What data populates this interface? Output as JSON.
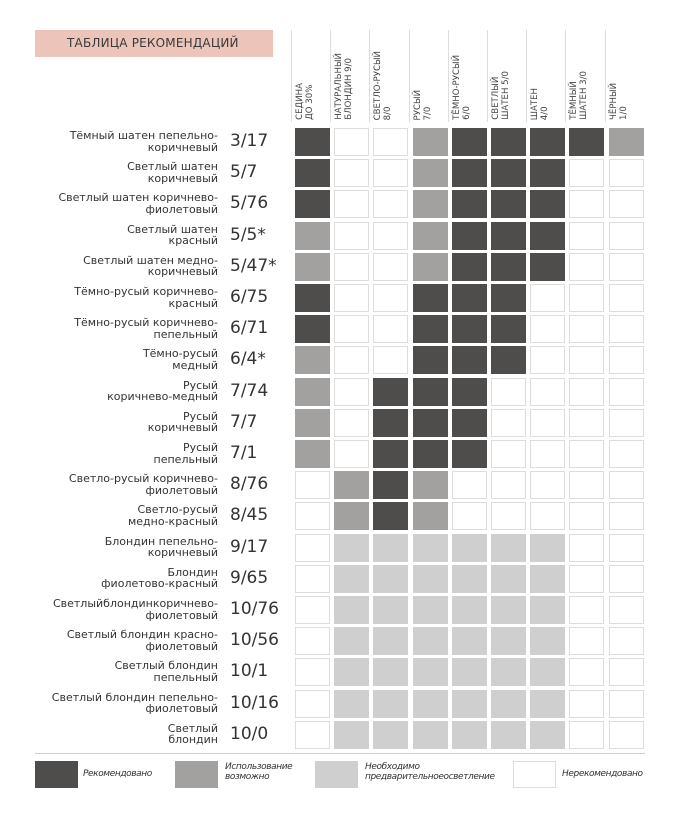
{
  "title": "ТАБЛИЦА РЕКОМЕНДАЦИЙ",
  "columns": [
    [
      "СЕДИНА",
      "ДО 30%"
    ],
    [
      "НАТУРАЛЬНЫЙ",
      "БЛОНДИН 9/0"
    ],
    [
      "СВЕТЛО-РУСЫЙ",
      "8/0"
    ],
    [
      "РУСЫЙ",
      "7/0"
    ],
    [
      "ТЁМНО-РУСЫЙ",
      "6/0"
    ],
    [
      "СВЕТЛЫЙ",
      "ШАТЕН 5/0"
    ],
    [
      "ШАТЕН",
      "4/0"
    ],
    [
      "ТЁМНЫЙ",
      "ШАТЕН 3/0"
    ],
    [
      "ЧЁРНЫЙ",
      "1/0"
    ]
  ],
  "rows": [
    {
      "label": [
        "Тёмный шатен пепельно-",
        "коричневый"
      ],
      "code": "3/17",
      "levels": [
        3,
        0,
        0,
        2,
        3,
        3,
        3,
        3,
        2
      ]
    },
    {
      "label": [
        "Светлый шатен",
        "коричневый"
      ],
      "code": "5/7",
      "levels": [
        3,
        0,
        0,
        2,
        3,
        3,
        3,
        0,
        0
      ]
    },
    {
      "label": [
        "Светлый шатен коричнево-",
        "фиолетовый"
      ],
      "code": "5/76",
      "levels": [
        3,
        0,
        0,
        2,
        3,
        3,
        3,
        0,
        0
      ]
    },
    {
      "label": [
        "Светлый шатен",
        "красный"
      ],
      "code": "5/5*",
      "levels": [
        2,
        0,
        0,
        2,
        3,
        3,
        3,
        0,
        0
      ]
    },
    {
      "label": [
        "Светлый шатен медно-",
        "коричневый"
      ],
      "code": "5/47*",
      "levels": [
        2,
        0,
        0,
        2,
        3,
        3,
        3,
        0,
        0
      ]
    },
    {
      "label": [
        "Тёмно-русый коричнево-",
        "красный"
      ],
      "code": "6/75",
      "levels": [
        3,
        0,
        0,
        3,
        3,
        3,
        0,
        0,
        0
      ]
    },
    {
      "label": [
        "Тёмно-русый коричнево-",
        "пепельный"
      ],
      "code": "6/71",
      "levels": [
        3,
        0,
        0,
        3,
        3,
        3,
        0,
        0,
        0
      ]
    },
    {
      "label": [
        "Тёмно-русый",
        "медный"
      ],
      "code": "6/4*",
      "levels": [
        2,
        0,
        0,
        3,
        3,
        3,
        0,
        0,
        0
      ]
    },
    {
      "label": [
        "Русый",
        "коричнево-медный"
      ],
      "code": "7/74",
      "levels": [
        2,
        0,
        3,
        3,
        3,
        0,
        0,
        0,
        0
      ]
    },
    {
      "label": [
        "Русый",
        "коричневый"
      ],
      "code": "7/7",
      "levels": [
        2,
        0,
        3,
        3,
        3,
        0,
        0,
        0,
        0
      ]
    },
    {
      "label": [
        "Русый",
        "пепельный"
      ],
      "code": "7/1",
      "levels": [
        2,
        0,
        3,
        3,
        3,
        0,
        0,
        0,
        0
      ]
    },
    {
      "label": [
        "Светло-русый коричнево-",
        "фиолетовый"
      ],
      "code": "8/76",
      "levels": [
        0,
        2,
        3,
        2,
        0,
        0,
        0,
        0,
        0
      ]
    },
    {
      "label": [
        "Светло-русый",
        "медно-красный"
      ],
      "code": "8/45",
      "levels": [
        0,
        2,
        3,
        2,
        0,
        0,
        0,
        0,
        0
      ]
    },
    {
      "label": [
        "Блондин пепельно-",
        "коричневый"
      ],
      "code": "9/17",
      "levels": [
        0,
        1,
        1,
        1,
        1,
        1,
        1,
        0,
        0
      ]
    },
    {
      "label": [
        "Блондин",
        "фиолетово-красный"
      ],
      "code": "9/65",
      "levels": [
        0,
        1,
        1,
        1,
        1,
        1,
        1,
        0,
        0
      ]
    },
    {
      "label": [
        "Светлыйблондинкоричнево-",
        "фиолетовый"
      ],
      "code": "10/76",
      "levels": [
        0,
        1,
        1,
        1,
        1,
        1,
        1,
        0,
        0
      ]
    },
    {
      "label": [
        "Светлый блондин красно-",
        "фиолетовый"
      ],
      "code": "10/56",
      "levels": [
        0,
        1,
        1,
        1,
        1,
        1,
        1,
        0,
        0
      ]
    },
    {
      "label": [
        "Светлый блондин",
        "пепельный"
      ],
      "code": "10/1",
      "levels": [
        0,
        1,
        1,
        1,
        1,
        1,
        1,
        0,
        0
      ]
    },
    {
      "label": [
        "Светлый блондин пепельно-",
        "фиолетовый"
      ],
      "code": "10/16",
      "levels": [
        0,
        1,
        1,
        1,
        1,
        1,
        1,
        0,
        0
      ]
    },
    {
      "label": [
        "Светлый",
        "блондин"
      ],
      "code": "10/0",
      "levels": [
        0,
        1,
        1,
        1,
        1,
        1,
        1,
        0,
        0
      ]
    }
  ],
  "legend": [
    {
      "level": 3,
      "text": [
        "Рекомендовано"
      ],
      "color": "#4f4d4c"
    },
    {
      "level": 2,
      "text": [
        "Использование",
        "возможно"
      ],
      "color": "#a3a1a0"
    },
    {
      "level": 1,
      "text": [
        "Необходимо",
        "предварительноеосветление"
      ],
      "color": "#cfcfcf"
    },
    {
      "level": 0,
      "text": [
        "Нерекомендовано"
      ],
      "color": "#ffffff"
    }
  ]
}
